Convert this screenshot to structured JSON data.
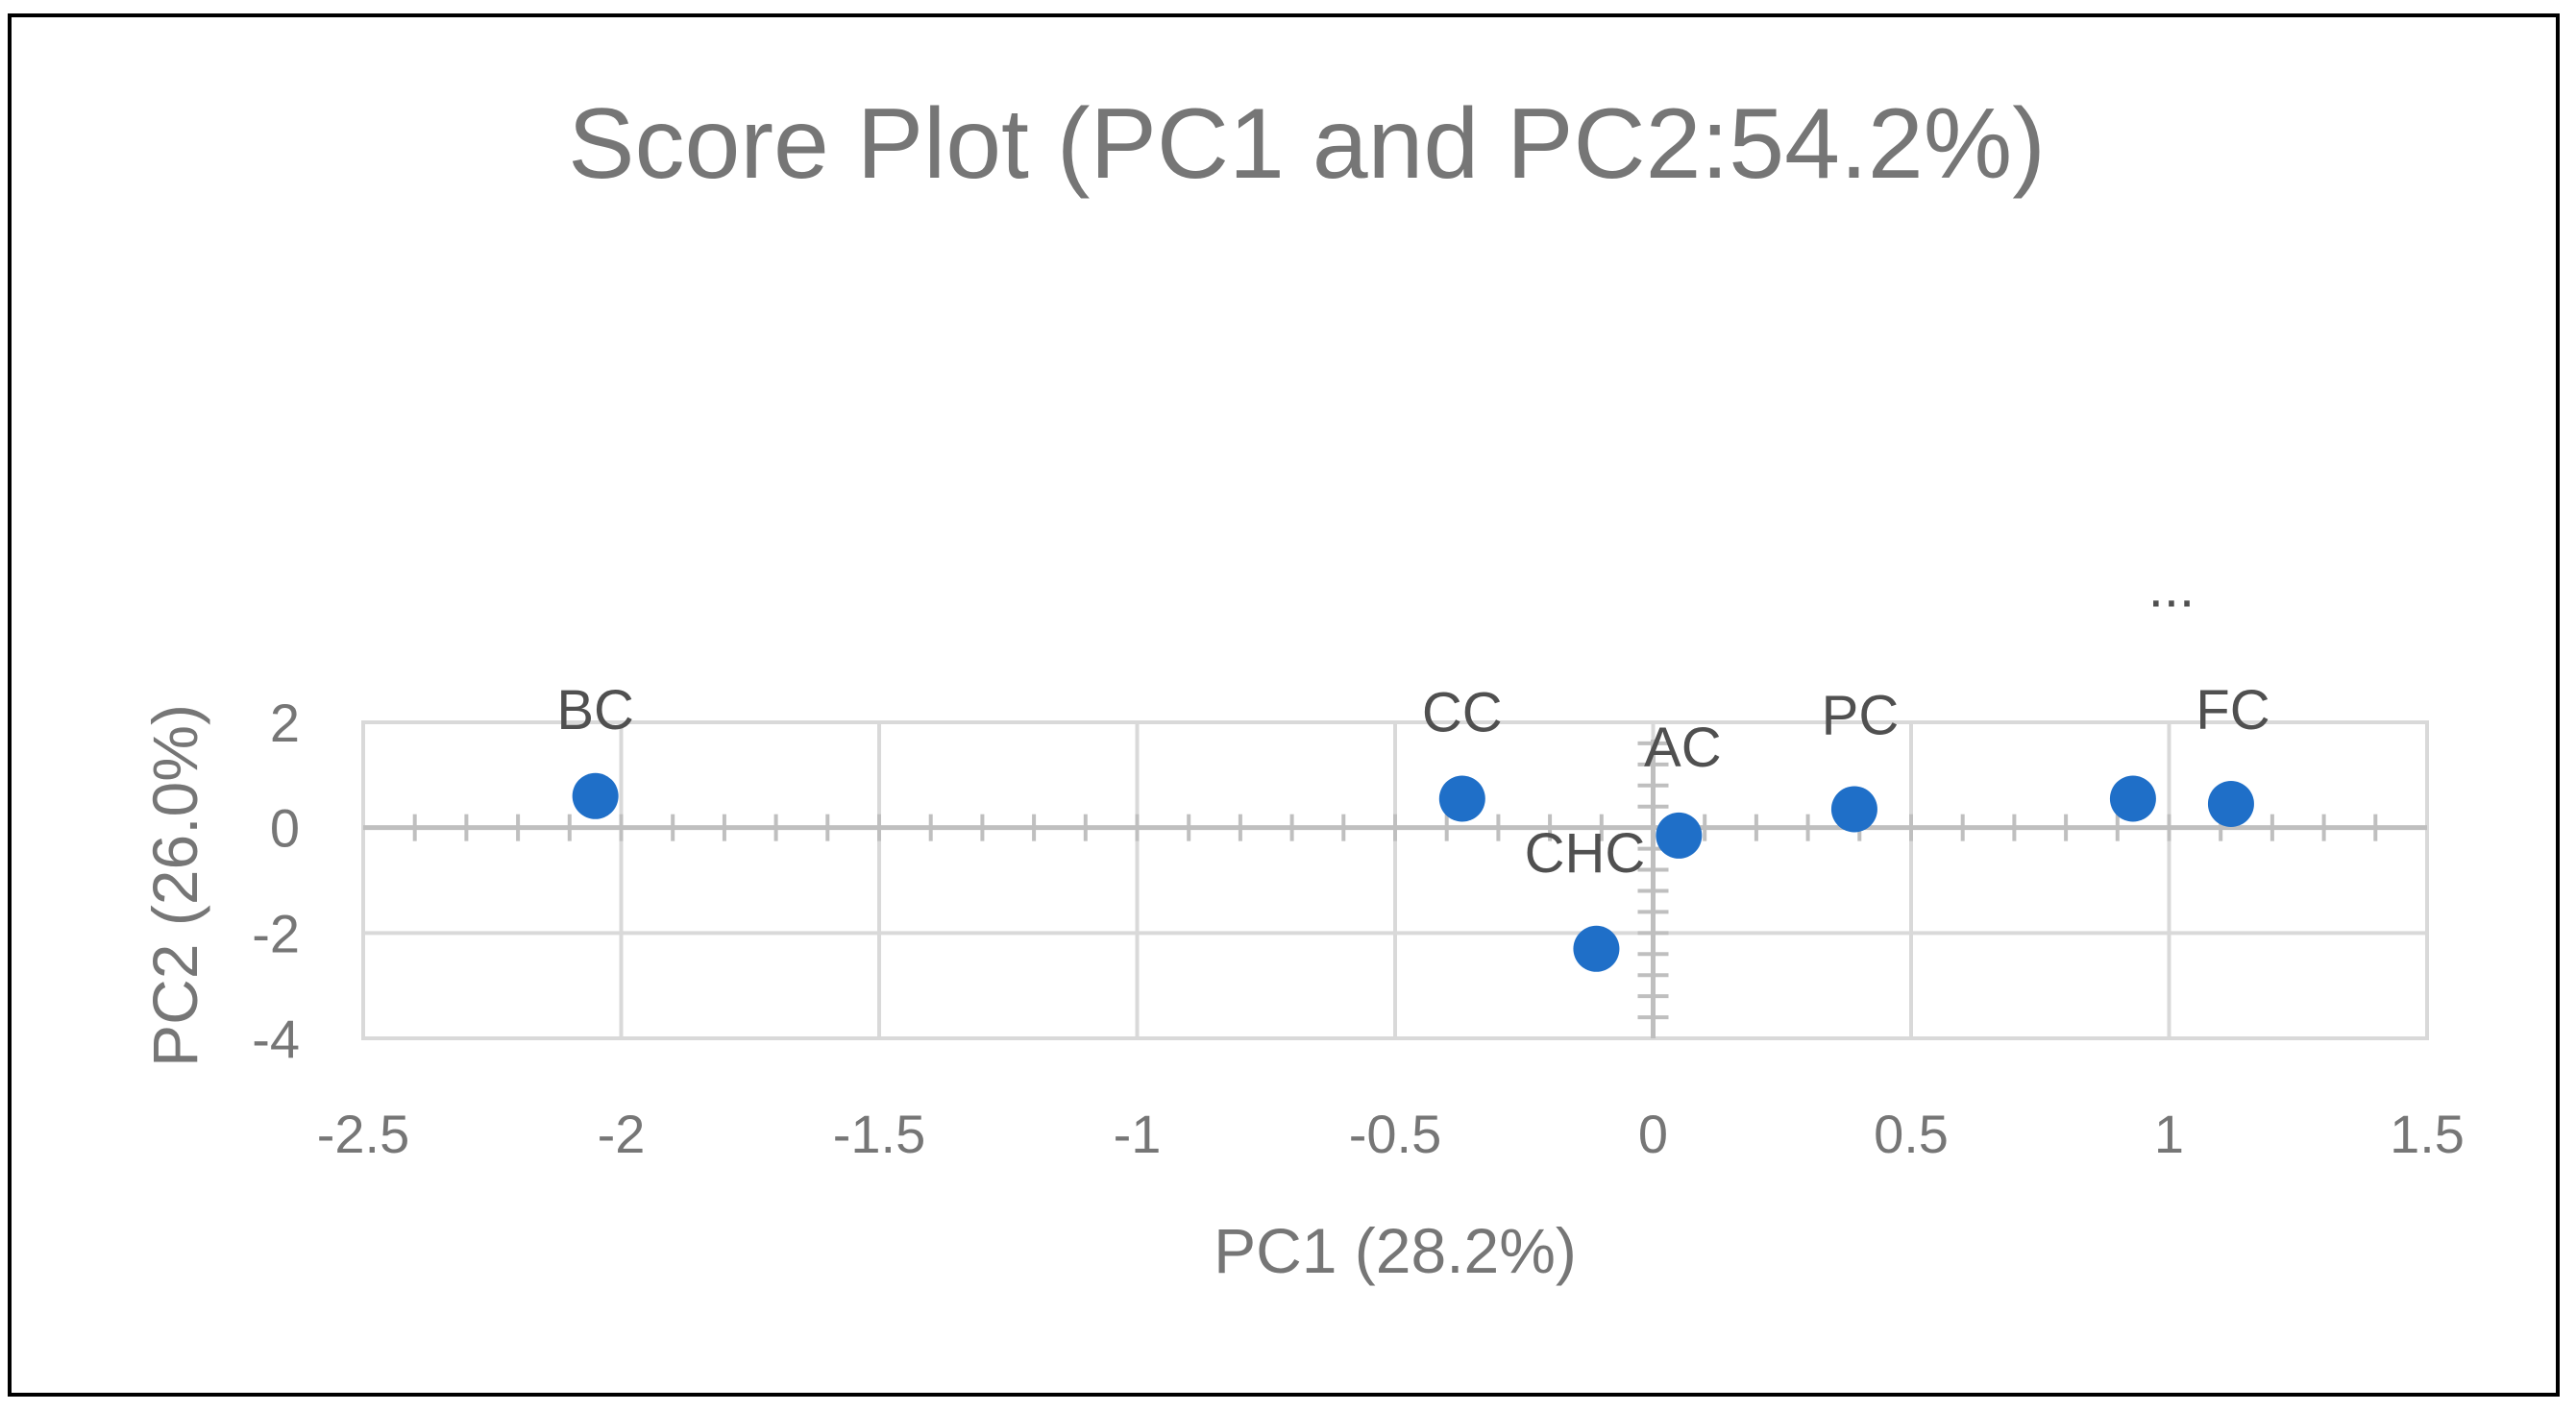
{
  "chart_data": {
    "type": "scatter",
    "title": "Score Plot (PC1 and PC2:54.2%)",
    "xlabel": "PC1 (28.2%)",
    "ylabel": "PC2 (26.0%)",
    "xlim": [
      -2.5,
      1.5
    ],
    "ylim": [
      -4,
      2
    ],
    "x_ticks": [
      -2.5,
      -2,
      -1.5,
      -1,
      -0.5,
      0,
      0.5,
      1,
      1.5
    ],
    "y_ticks": [
      -4,
      -2,
      0,
      2
    ],
    "x_tick_labels": [
      "-2.5",
      "-2",
      "-1.5",
      "-1",
      "-0.5",
      "0",
      "0.5",
      "1",
      "1.5"
    ],
    "y_tick_labels": [
      "-4",
      "-2",
      "0",
      "2"
    ],
    "grid": true,
    "marker_color": "#1F6FC8",
    "points": [
      {
        "label": "BC",
        "x": -2.05,
        "y": 0.6
      },
      {
        "label": "CC",
        "x": -0.37,
        "y": 0.55
      },
      {
        "label": "CHC",
        "x": -0.11,
        "y": -2.3
      },
      {
        "label": "AC",
        "x": 0.05,
        "y": -0.15
      },
      {
        "label": "PC",
        "x": 0.39,
        "y": 0.35
      },
      {
        "label": "...",
        "x": 0.93,
        "y": 0.55
      },
      {
        "label": "FC",
        "x": 1.12,
        "y": 0.45
      }
    ]
  }
}
